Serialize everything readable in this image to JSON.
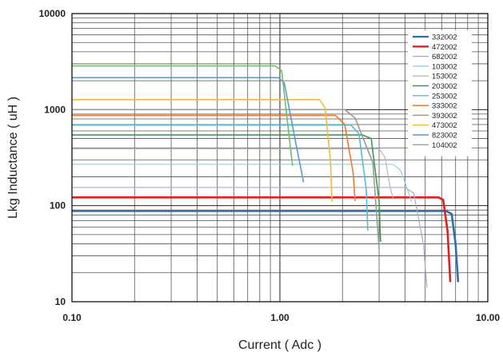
{
  "chart_data": {
    "type": "line",
    "title": "",
    "xlabel": "Current  ( Adc )",
    "ylabel": "Lkg Inductance  ( uH )",
    "x_scale": "log",
    "y_scale": "log",
    "xlim": [
      0.1,
      10
    ],
    "ylim": [
      10,
      10000
    ],
    "x_ticks": [
      {
        "value": 0.1,
        "label": "0.10"
      },
      {
        "value": 1,
        "label": "1.00"
      },
      {
        "value": 10,
        "label": "10.00"
      }
    ],
    "y_ticks": [
      {
        "value": 10,
        "label": "10"
      },
      {
        "value": 100,
        "label": "100"
      },
      {
        "value": 1000,
        "label": "1000"
      },
      {
        "value": 10000,
        "label": "10000"
      }
    ],
    "grid": true,
    "legend_position": "top-right",
    "series": [
      {
        "name": "332002",
        "color": "#2f6fae",
        "width": 2.6,
        "points": [
          [
            0.1,
            88
          ],
          [
            6.3,
            88
          ],
          [
            6.7,
            82
          ],
          [
            7.0,
            40
          ],
          [
            7.2,
            16
          ]
        ]
      },
      {
        "name": "472002",
        "color": "#e02020",
        "width": 2.6,
        "points": [
          [
            0.1,
            122
          ],
          [
            5.8,
            122
          ],
          [
            6.1,
            115
          ],
          [
            6.4,
            55
          ],
          [
            6.6,
            16
          ]
        ]
      },
      {
        "name": "682002",
        "color": "#b9a2c9",
        "width": 1.2,
        "points": [
          [
            0.1,
            155
          ],
          [
            4.0,
            155
          ],
          [
            4.4,
            135
          ],
          [
            4.9,
            40
          ],
          [
            5.1,
            14
          ]
        ]
      },
      {
        "name": "103002",
        "color": "#8fd0df",
        "width": 1.2,
        "points": [
          [
            0.1,
            270
          ],
          [
            3.5,
            270
          ],
          [
            3.8,
            235
          ],
          [
            4.1,
            150
          ],
          [
            4.3,
            110
          ]
        ]
      },
      {
        "name": "153002",
        "color": "#b8b8b8",
        "width": 1.2,
        "points": [
          [
            0.1,
            390
          ],
          [
            3.0,
            390
          ],
          [
            3.2,
            320
          ],
          [
            3.4,
            150
          ],
          [
            3.5,
            120
          ]
        ]
      },
      {
        "name": "203002",
        "color": "#3f9a4a",
        "width": 1.6,
        "points": [
          [
            0.1,
            545
          ],
          [
            2.5,
            545
          ],
          [
            2.75,
            500
          ],
          [
            3.0,
            110
          ],
          [
            3.05,
            42
          ]
        ]
      },
      {
        "name": "253002",
        "color": "#55bcd6",
        "width": 1.6,
        "points": [
          [
            0.1,
            690
          ],
          [
            2.2,
            690
          ],
          [
            2.4,
            560
          ],
          [
            2.6,
            150
          ],
          [
            2.65,
            55
          ]
        ]
      },
      {
        "name": "333002",
        "color": "#f07a2a",
        "width": 1.6,
        "points": [
          [
            0.1,
            870
          ],
          [
            1.85,
            870
          ],
          [
            2.05,
            700
          ],
          [
            2.25,
            220
          ],
          [
            2.3,
            112
          ]
        ]
      },
      {
        "name": "393002",
        "color": "#9a9a9a",
        "width": 1.6,
        "points": [
          [
            0.1,
            1000
          ],
          [
            2.05,
            1000
          ],
          [
            2.3,
            820
          ],
          [
            2.8,
            280
          ],
          [
            3.0,
            35
          ]
        ]
      },
      {
        "name": "473002",
        "color": "#f4b740",
        "width": 1.6,
        "points": [
          [
            0.1,
            1270
          ],
          [
            1.55,
            1270
          ],
          [
            1.65,
            1050
          ],
          [
            1.75,
            300
          ],
          [
            1.78,
            110
          ]
        ]
      },
      {
        "name": "823002",
        "color": "#5a9ad2",
        "width": 1.6,
        "points": [
          [
            0.1,
            2150
          ],
          [
            0.98,
            2150
          ],
          [
            1.05,
            1900
          ],
          [
            1.2,
            420
          ],
          [
            1.3,
            175
          ]
        ]
      },
      {
        "name": "104002",
        "color": "#6fbf6f",
        "width": 1.6,
        "points": [
          [
            0.1,
            2850
          ],
          [
            0.95,
            2850
          ],
          [
            1.02,
            2550
          ],
          [
            1.1,
            600
          ],
          [
            1.15,
            260
          ]
        ]
      }
    ]
  }
}
